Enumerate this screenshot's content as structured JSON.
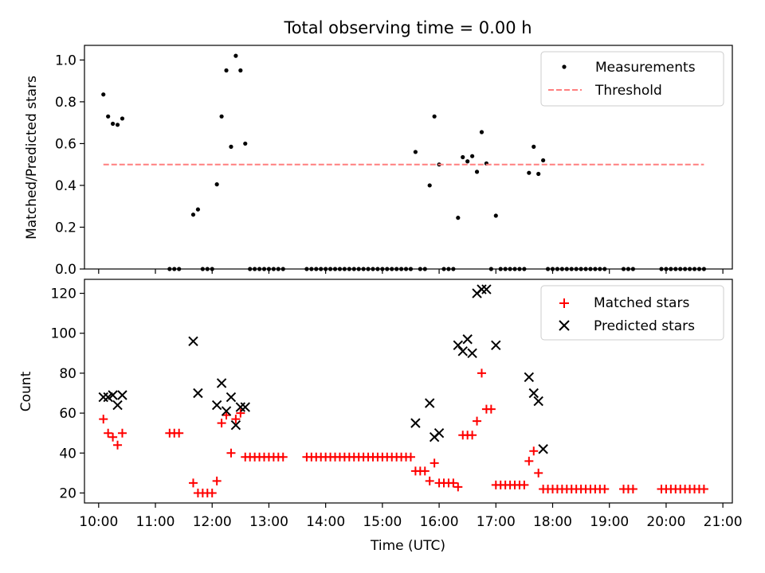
{
  "chart_data": [
    {
      "type": "scatter",
      "title": "Total observing time = 0.00 h",
      "xlabel": "",
      "ylabel": "Matched/Predicted stars",
      "xlim": [
        "09:45",
        "21:10"
      ],
      "ylim": [
        0,
        1.07
      ],
      "yticks": [
        "0.0",
        "0.2",
        "0.4",
        "0.6",
        "0.8",
        "1.0"
      ],
      "grid": false,
      "legend_position": "top-right",
      "series": [
        {
          "name": "Measurements",
          "marker": "dot",
          "color": "#000000",
          "points": [
            [
              "10:05",
              0.835
            ],
            [
              "10:10",
              0.73
            ],
            [
              "10:15",
              0.695
            ],
            [
              "10:20",
              0.69
            ],
            [
              "10:25",
              0.72
            ],
            [
              "11:15",
              0
            ],
            [
              "11:20",
              0
            ],
            [
              "11:25",
              0
            ],
            [
              "11:40",
              0.26
            ],
            [
              "11:45",
              0.285
            ],
            [
              "11:50",
              0
            ],
            [
              "11:55",
              0
            ],
            [
              "12:00",
              0
            ],
            [
              "12:05",
              0.405
            ],
            [
              "12:10",
              0.73
            ],
            [
              "12:15",
              0.95
            ],
            [
              "12:20",
              0.585
            ],
            [
              "12:25",
              1.02
            ],
            [
              "12:30",
              0.95
            ],
            [
              "12:35",
              0.6
            ],
            [
              "12:40",
              0
            ],
            [
              "12:45",
              0
            ],
            [
              "12:50",
              0
            ],
            [
              "12:55",
              0
            ],
            [
              "13:00",
              0
            ],
            [
              "13:05",
              0
            ],
            [
              "13:10",
              0
            ],
            [
              "13:15",
              0
            ],
            [
              "13:40",
              0
            ],
            [
              "13:45",
              0
            ],
            [
              "13:50",
              0
            ],
            [
              "13:55",
              0
            ],
            [
              "14:00",
              0
            ],
            [
              "14:05",
              0
            ],
            [
              "14:10",
              0
            ],
            [
              "14:15",
              0
            ],
            [
              "14:20",
              0
            ],
            [
              "14:25",
              0
            ],
            [
              "14:30",
              0
            ],
            [
              "14:35",
              0
            ],
            [
              "14:40",
              0
            ],
            [
              "14:45",
              0
            ],
            [
              "14:50",
              0
            ],
            [
              "14:55",
              0
            ],
            [
              "15:00",
              0
            ],
            [
              "15:05",
              0
            ],
            [
              "15:10",
              0
            ],
            [
              "15:15",
              0
            ],
            [
              "15:20",
              0
            ],
            [
              "15:25",
              0
            ],
            [
              "15:30",
              0
            ],
            [
              "15:35",
              0.56
            ],
            [
              "15:40",
              0
            ],
            [
              "15:45",
              0
            ],
            [
              "15:50",
              0.4
            ],
            [
              "15:55",
              0.73
            ],
            [
              "16:00",
              0.5
            ],
            [
              "16:05",
              0
            ],
            [
              "16:10",
              0
            ],
            [
              "16:15",
              0
            ],
            [
              "16:20",
              0.245
            ],
            [
              "16:25",
              0.535
            ],
            [
              "16:30",
              0.515
            ],
            [
              "16:35",
              0.54
            ],
            [
              "16:40",
              0.465
            ],
            [
              "16:45",
              0.655
            ],
            [
              "16:50",
              0.505
            ],
            [
              "16:55",
              0
            ],
            [
              "17:00",
              0.255
            ],
            [
              "17:05",
              0
            ],
            [
              "17:10",
              0
            ],
            [
              "17:15",
              0
            ],
            [
              "17:20",
              0
            ],
            [
              "17:25",
              0
            ],
            [
              "17:30",
              0
            ],
            [
              "17:35",
              0.46
            ],
            [
              "17:40",
              0.585
            ],
            [
              "17:45",
              0.455
            ],
            [
              "17:50",
              0.52
            ],
            [
              "17:55",
              0
            ],
            [
              "18:00",
              0
            ],
            [
              "18:05",
              0
            ],
            [
              "18:10",
              0
            ],
            [
              "18:15",
              0
            ],
            [
              "18:20",
              0
            ],
            [
              "18:25",
              0
            ],
            [
              "18:30",
              0
            ],
            [
              "18:35",
              0
            ],
            [
              "18:40",
              0
            ],
            [
              "18:45",
              0
            ],
            [
              "18:50",
              0
            ],
            [
              "18:55",
              0
            ],
            [
              "19:15",
              0
            ],
            [
              "19:20",
              0
            ],
            [
              "19:25",
              0
            ],
            [
              "19:55",
              0
            ],
            [
              "20:00",
              0
            ],
            [
              "20:05",
              0
            ],
            [
              "20:10",
              0
            ],
            [
              "20:15",
              0
            ],
            [
              "20:20",
              0
            ],
            [
              "20:25",
              0
            ],
            [
              "20:30",
              0
            ],
            [
              "20:35",
              0
            ],
            [
              "20:40",
              0
            ]
          ]
        },
        {
          "name": "Threshold",
          "line": "dashed",
          "color": "#ff7f7f",
          "points": [
            [
              "10:05",
              0.5
            ],
            [
              "20:40",
              0.5
            ]
          ]
        }
      ]
    },
    {
      "type": "scatter",
      "title": "",
      "xlabel": "Time (UTC)",
      "ylabel": "Count",
      "xlim": [
        "09:45",
        "21:10"
      ],
      "ylim": [
        15,
        127
      ],
      "yticks": [
        "20",
        "40",
        "60",
        "80",
        "100",
        "120"
      ],
      "xticks": [
        "10:00",
        "11:00",
        "12:00",
        "13:00",
        "14:00",
        "15:00",
        "16:00",
        "17:00",
        "18:00",
        "19:00",
        "20:00",
        "21:00"
      ],
      "grid": false,
      "legend_position": "top-right",
      "series": [
        {
          "name": "Matched stars",
          "marker": "plus",
          "color": "#ff0000",
          "points": [
            [
              "10:05",
              57
            ],
            [
              "10:10",
              50
            ],
            [
              "10:15",
              48
            ],
            [
              "10:20",
              44
            ],
            [
              "10:25",
              50
            ],
            [
              "11:15",
              50
            ],
            [
              "11:20",
              50
            ],
            [
              "11:25",
              50
            ],
            [
              "11:40",
              25
            ],
            [
              "11:45",
              20
            ],
            [
              "11:50",
              20
            ],
            [
              "11:55",
              20
            ],
            [
              "12:00",
              20
            ],
            [
              "12:05",
              26
            ],
            [
              "12:10",
              55
            ],
            [
              "12:15",
              59
            ],
            [
              "12:20",
              40
            ],
            [
              "12:25",
              57
            ],
            [
              "12:30",
              60
            ],
            [
              "12:35",
              38
            ],
            [
              "12:40",
              38
            ],
            [
              "12:45",
              38
            ],
            [
              "12:50",
              38
            ],
            [
              "12:55",
              38
            ],
            [
              "13:00",
              38
            ],
            [
              "13:05",
              38
            ],
            [
              "13:10",
              38
            ],
            [
              "13:15",
              38
            ],
            [
              "13:40",
              38
            ],
            [
              "13:45",
              38
            ],
            [
              "13:50",
              38
            ],
            [
              "13:55",
              38
            ],
            [
              "14:00",
              38
            ],
            [
              "14:05",
              38
            ],
            [
              "14:10",
              38
            ],
            [
              "14:15",
              38
            ],
            [
              "14:20",
              38
            ],
            [
              "14:25",
              38
            ],
            [
              "14:30",
              38
            ],
            [
              "14:35",
              38
            ],
            [
              "14:40",
              38
            ],
            [
              "14:45",
              38
            ],
            [
              "14:50",
              38
            ],
            [
              "14:55",
              38
            ],
            [
              "15:00",
              38
            ],
            [
              "15:05",
              38
            ],
            [
              "15:10",
              38
            ],
            [
              "15:15",
              38
            ],
            [
              "15:20",
              38
            ],
            [
              "15:25",
              38
            ],
            [
              "15:30",
              38
            ],
            [
              "15:35",
              31
            ],
            [
              "15:40",
              31
            ],
            [
              "15:45",
              31
            ],
            [
              "15:50",
              26
            ],
            [
              "15:55",
              35
            ],
            [
              "16:00",
              25
            ],
            [
              "16:05",
              25
            ],
            [
              "16:10",
              25
            ],
            [
              "16:15",
              25
            ],
            [
              "16:20",
              23
            ],
            [
              "16:25",
              49
            ],
            [
              "16:30",
              49
            ],
            [
              "16:35",
              49
            ],
            [
              "16:40",
              56
            ],
            [
              "16:45",
              80
            ],
            [
              "16:50",
              62
            ],
            [
              "16:55",
              62
            ],
            [
              "17:00",
              24
            ],
            [
              "17:05",
              24
            ],
            [
              "17:10",
              24
            ],
            [
              "17:15",
              24
            ],
            [
              "17:20",
              24
            ],
            [
              "17:25",
              24
            ],
            [
              "17:30",
              24
            ],
            [
              "17:35",
              36
            ],
            [
              "17:40",
              41
            ],
            [
              "17:45",
              30
            ],
            [
              "17:50",
              22
            ],
            [
              "17:55",
              22
            ],
            [
              "18:00",
              22
            ],
            [
              "18:05",
              22
            ],
            [
              "18:10",
              22
            ],
            [
              "18:15",
              22
            ],
            [
              "18:20",
              22
            ],
            [
              "18:25",
              22
            ],
            [
              "18:30",
              22
            ],
            [
              "18:35",
              22
            ],
            [
              "18:40",
              22
            ],
            [
              "18:45",
              22
            ],
            [
              "18:50",
              22
            ],
            [
              "18:55",
              22
            ],
            [
              "19:15",
              22
            ],
            [
              "19:20",
              22
            ],
            [
              "19:25",
              22
            ],
            [
              "19:55",
              22
            ],
            [
              "20:00",
              22
            ],
            [
              "20:05",
              22
            ],
            [
              "20:10",
              22
            ],
            [
              "20:15",
              22
            ],
            [
              "20:20",
              22
            ],
            [
              "20:25",
              22
            ],
            [
              "20:30",
              22
            ],
            [
              "20:35",
              22
            ],
            [
              "20:40",
              22
            ]
          ]
        },
        {
          "name": "Predicted stars",
          "marker": "x",
          "color": "#000000",
          "points": [
            [
              "10:05",
              68
            ],
            [
              "10:10",
              68
            ],
            [
              "10:15",
              69
            ],
            [
              "10:20",
              64
            ],
            [
              "10:25",
              69
            ],
            [
              "11:40",
              96
            ],
            [
              "11:45",
              70
            ],
            [
              "12:05",
              64
            ],
            [
              "12:10",
              75
            ],
            [
              "12:15",
              61
            ],
            [
              "12:20",
              68
            ],
            [
              "12:25",
              54
            ],
            [
              "12:30",
              63
            ],
            [
              "12:35",
              63
            ],
            [
              "15:35",
              55
            ],
            [
              "15:50",
              65
            ],
            [
              "15:55",
              48
            ],
            [
              "16:00",
              50
            ],
            [
              "16:20",
              94
            ],
            [
              "16:25",
              91
            ],
            [
              "16:30",
              97
            ],
            [
              "16:35",
              90
            ],
            [
              "16:40",
              120
            ],
            [
              "16:45",
              122
            ],
            [
              "16:50",
              122
            ],
            [
              "17:00",
              94
            ],
            [
              "17:35",
              78
            ],
            [
              "17:40",
              70
            ],
            [
              "17:45",
              66
            ],
            [
              "17:50",
              42
            ]
          ]
        }
      ]
    }
  ]
}
